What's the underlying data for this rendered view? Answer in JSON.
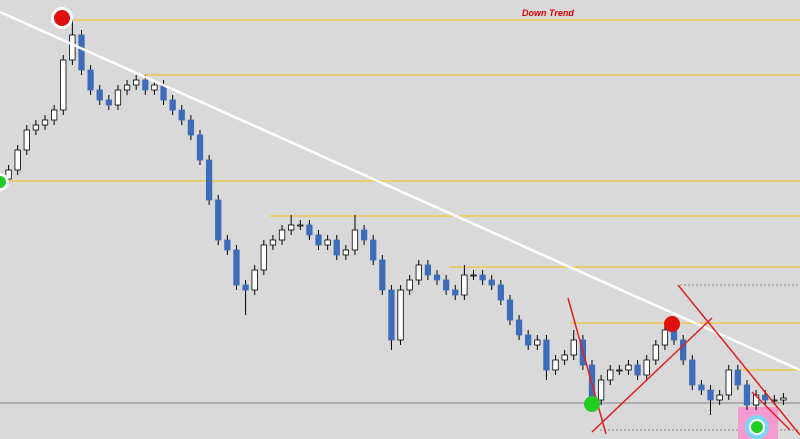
{
  "chart_data": {
    "type": "candlestick",
    "annotation": "Down Trend",
    "ylim": [
      0,
      439
    ],
    "up_color": "#ffffff",
    "down_color": "#3d6cb8",
    "level_color": "#f5c400",
    "levels": [
      419,
      364,
      258,
      223,
      172,
      116,
      69
    ],
    "open": [
      260,
      269,
      289,
      309,
      314,
      319,
      329,
      379,
      404,
      369,
      349,
      339,
      334,
      349,
      354,
      359,
      349,
      354,
      339,
      329,
      319,
      304,
      279,
      239,
      199,
      189,
      154,
      149,
      169,
      194,
      199,
      209,
      214,
      214,
      204,
      194,
      199,
      184,
      189,
      209,
      199,
      179,
      149,
      99,
      149,
      159,
      174,
      164,
      159,
      149,
      144,
      164,
      164,
      159,
      154,
      139,
      119,
      104,
      94,
      99,
      69,
      79,
      84,
      99,
      74,
      39,
      59,
      69,
      69,
      74,
      64,
      79,
      94,
      109,
      99,
      79,
      54,
      49,
      39,
      44,
      69,
      54,
      34,
      44,
      39,
      39
    ],
    "high": [
      274,
      294,
      314,
      319,
      324,
      334,
      384,
      421,
      409,
      374,
      354,
      344,
      354,
      359,
      364,
      364,
      359,
      359,
      344,
      334,
      324,
      309,
      284,
      244,
      204,
      194,
      159,
      174,
      199,
      204,
      214,
      224,
      219,
      219,
      209,
      204,
      204,
      194,
      224,
      214,
      204,
      184,
      154,
      154,
      164,
      179,
      179,
      169,
      164,
      154,
      174,
      169,
      169,
      164,
      159,
      144,
      124,
      109,
      104,
      104,
      84,
      89,
      109,
      104,
      79,
      64,
      74,
      74,
      79,
      79,
      84,
      99,
      114,
      114,
      104,
      84,
      59,
      54,
      49,
      74,
      74,
      59,
      49,
      49,
      44,
      46
    ],
    "low": [
      255,
      264,
      284,
      304,
      309,
      314,
      324,
      374,
      364,
      344,
      334,
      329,
      329,
      344,
      349,
      344,
      344,
      334,
      324,
      314,
      299,
      274,
      234,
      194,
      184,
      149,
      124,
      144,
      164,
      189,
      194,
      204,
      209,
      199,
      189,
      189,
      179,
      179,
      184,
      194,
      174,
      144,
      89,
      94,
      144,
      154,
      159,
      154,
      144,
      139,
      139,
      159,
      154,
      149,
      134,
      114,
      99,
      89,
      89,
      59,
      64,
      74,
      79,
      69,
      34,
      34,
      54,
      64,
      64,
      59,
      59,
      74,
      89,
      94,
      74,
      49,
      44,
      24,
      34,
      39,
      49,
      29,
      29,
      34,
      34,
      34
    ],
    "close": [
      269,
      289,
      309,
      314,
      319,
      329,
      379,
      404,
      369,
      349,
      339,
      334,
      349,
      354,
      359,
      349,
      354,
      339,
      329,
      319,
      304,
      279,
      239,
      199,
      189,
      154,
      149,
      169,
      194,
      199,
      209,
      214,
      214,
      204,
      194,
      199,
      184,
      189,
      209,
      199,
      179,
      149,
      99,
      149,
      159,
      174,
      164,
      159,
      149,
      144,
      164,
      164,
      159,
      154,
      139,
      119,
      104,
      94,
      99,
      69,
      79,
      84,
      99,
      74,
      39,
      59,
      69,
      69,
      74,
      64,
      79,
      94,
      109,
      99,
      79,
      54,
      49,
      39,
      44,
      69,
      54,
      34,
      44,
      39,
      39,
      41
    ]
  }
}
